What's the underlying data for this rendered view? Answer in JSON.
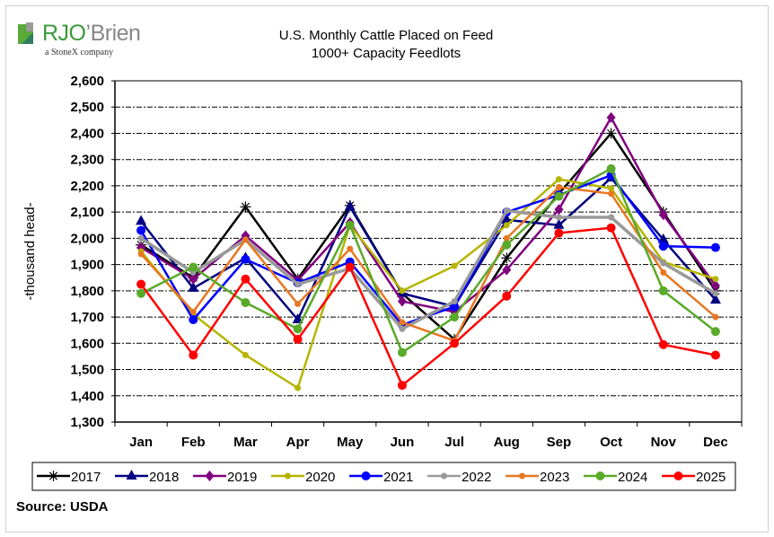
{
  "logo": {
    "brand_primary": "RJO",
    "brand_secondary": "Brien",
    "tagline": "a StoneX company"
  },
  "source": "Source: USDA",
  "chart_data": {
    "type": "line",
    "title": "U.S. Monthly Cattle Placed on Feed",
    "subtitle": "1000+ Capacity Feedlots",
    "xlabel": "",
    "ylabel": "-thousand head-",
    "ylim": [
      1300,
      2600
    ],
    "ytick_step": 100,
    "yticks": [
      "1,300",
      "1,400",
      "1,500",
      "1,600",
      "1,700",
      "1,800",
      "1,900",
      "2,000",
      "2,100",
      "2,200",
      "2,300",
      "2,400",
      "2,500",
      "2,600"
    ],
    "grid": true,
    "legend_position": "bottom",
    "categories": [
      "Jan",
      "Feb",
      "Mar",
      "Apr",
      "May",
      "Jun",
      "Jul",
      "Aug",
      "Sep",
      "Oct",
      "Nov",
      "Dec"
    ],
    "series": [
      {
        "name": "2017",
        "color": "#000000",
        "marker": "star",
        "values": [
          1975,
          1850,
          2120,
          1845,
          2125,
          1790,
          1615,
          1925,
          2170,
          2400,
          2100,
          1800
        ]
      },
      {
        "name": "2018",
        "color": "#000080",
        "marker": "triangle",
        "values": [
          2065,
          1810,
          1925,
          1690,
          2120,
          1790,
          1740,
          2070,
          2050,
          2230,
          1995,
          1765
        ]
      },
      {
        "name": "2019",
        "color": "#800080",
        "marker": "diamond",
        "values": [
          1965,
          1845,
          2010,
          1840,
          2060,
          1760,
          1720,
          1880,
          2110,
          2460,
          2090,
          1820
        ]
      },
      {
        "name": "2020",
        "color": "#b5b500",
        "marker": "dot",
        "values": [
          1950,
          1710,
          1555,
          1430,
          2050,
          1800,
          1895,
          2050,
          2225,
          2190,
          1910,
          1845
        ]
      },
      {
        "name": "2021",
        "color": "#0000ff",
        "marker": "circle",
        "values": [
          2030,
          1690,
          1920,
          1830,
          1910,
          1670,
          1740,
          2100,
          2165,
          2240,
          1970,
          1965
        ]
      },
      {
        "name": "2022",
        "color": "#999999",
        "marker": "dot",
        "values": [
          2000,
          1870,
          1995,
          1825,
          1885,
          1655,
          1760,
          2105,
          2080,
          2080,
          1905,
          1790
        ]
      },
      {
        "name": "2023",
        "color": "#e87722",
        "marker": "dot",
        "values": [
          1940,
          1720,
          1995,
          1750,
          1960,
          1680,
          1610,
          2000,
          2195,
          2170,
          1870,
          1700
        ]
      },
      {
        "name": "2024",
        "color": "#5aaa2a",
        "marker": "circle",
        "values": [
          1790,
          1890,
          1755,
          1655,
          2050,
          1565,
          1700,
          1975,
          2160,
          2265,
          1800,
          1645
        ]
      },
      {
        "name": "2025",
        "color": "#ff0000",
        "marker": "circle",
        "values": [
          1825,
          1555,
          1845,
          1615,
          1890,
          1440,
          1600,
          1780,
          2020,
          2040,
          1595,
          1555
        ]
      }
    ]
  }
}
